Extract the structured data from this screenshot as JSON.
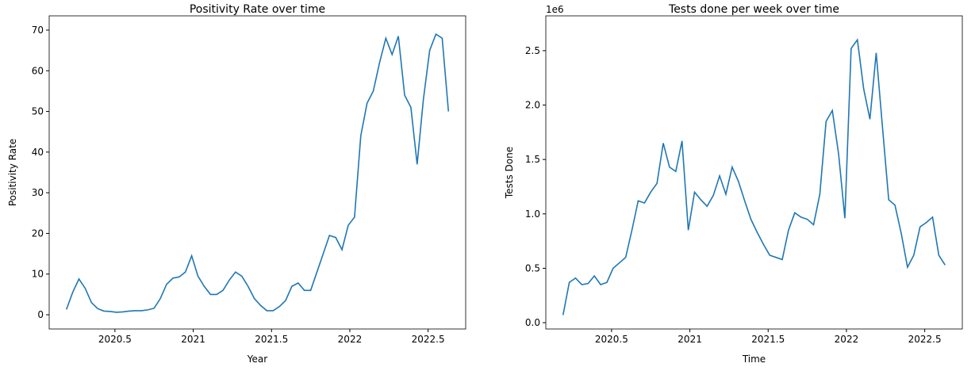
{
  "chart_data": [
    {
      "type": "line",
      "title": "Positivity Rate over time",
      "xlabel": "Year",
      "ylabel": "Positivity Rate",
      "color": "#1f77b4",
      "x": [
        2020.19,
        2020.23,
        2020.27,
        2020.31,
        2020.35,
        2020.39,
        2020.43,
        2020.47,
        2020.51,
        2020.55,
        2020.59,
        2020.63,
        2020.67,
        2020.71,
        2020.75,
        2020.79,
        2020.83,
        2020.87,
        2020.91,
        2020.95,
        2020.99,
        2021.03,
        2021.07,
        2021.11,
        2021.15,
        2021.19,
        2021.23,
        2021.27,
        2021.31,
        2021.35,
        2021.39,
        2021.43,
        2021.47,
        2021.51,
        2021.55,
        2021.59,
        2021.63,
        2021.67,
        2021.71,
        2021.75,
        2021.79,
        2021.83,
        2021.87,
        2021.91,
        2021.95,
        2021.99,
        2022.03,
        2022.07,
        2022.11,
        2022.15,
        2022.19,
        2022.23,
        2022.27,
        2022.31,
        2022.35,
        2022.39,
        2022.43,
        2022.47,
        2022.51,
        2022.55,
        2022.59,
        2022.63
      ],
      "values": [
        1.3,
        5.5,
        8.8,
        6.5,
        3,
        1.5,
        0.9,
        0.8,
        0.6,
        0.7,
        0.9,
        1.0,
        1.0,
        1.2,
        1.6,
        4,
        7.5,
        9,
        9.3,
        10.5,
        14.5,
        9.5,
        7,
        5,
        5,
        6,
        8.5,
        10.5,
        9.5,
        7,
        4,
        2.3,
        1,
        1,
        2,
        3.5,
        7,
        7.8,
        6,
        6,
        10.5,
        15,
        19.5,
        19,
        16,
        22,
        24,
        44,
        52,
        55,
        62,
        68,
        64,
        68.5,
        54,
        51,
        37,
        53,
        65,
        69,
        68,
        50
      ],
      "xlim": [
        2020.08,
        2022.74
      ],
      "xticks": [
        2020.5,
        2021.0,
        2021.5,
        2022.0,
        2022.5
      ],
      "ylim": [
        -3.5,
        73.5
      ],
      "yticks": [
        0,
        10,
        20,
        30,
        40,
        50,
        60,
        70
      ]
    },
    {
      "type": "line",
      "title": "Tests done per week over time",
      "xlabel": "Time",
      "ylabel": "Tests Done",
      "y_offset_label": "1e6",
      "color": "#1f77b4",
      "x": [
        2020.19,
        2020.23,
        2020.27,
        2020.31,
        2020.35,
        2020.39,
        2020.43,
        2020.47,
        2020.51,
        2020.55,
        2020.59,
        2020.63,
        2020.67,
        2020.71,
        2020.75,
        2020.79,
        2020.83,
        2020.87,
        2020.91,
        2020.95,
        2020.99,
        2021.03,
        2021.07,
        2021.11,
        2021.15,
        2021.19,
        2021.23,
        2021.27,
        2021.31,
        2021.35,
        2021.39,
        2021.43,
        2021.47,
        2021.51,
        2021.55,
        2021.59,
        2021.63,
        2021.67,
        2021.71,
        2021.75,
        2021.79,
        2021.83,
        2021.87,
        2021.91,
        2021.95,
        2021.99,
        2022.03,
        2022.07,
        2022.11,
        2022.15,
        2022.19,
        2022.23,
        2022.27,
        2022.31,
        2022.35,
        2022.39,
        2022.43,
        2022.47,
        2022.51,
        2022.55,
        2022.59,
        2022.63
      ],
      "values": [
        70000,
        370000,
        410000,
        350000,
        360000,
        430000,
        350000,
        370000,
        500000,
        550000,
        600000,
        850000,
        1120000,
        1100000,
        1200000,
        1280000,
        1650000,
        1430000,
        1390000,
        1670000,
        850000,
        1200000,
        1130000,
        1070000,
        1170000,
        1350000,
        1180000,
        1430000,
        1300000,
        1120000,
        950000,
        830000,
        720000,
        620000,
        600000,
        580000,
        850000,
        1010000,
        970000,
        950000,
        900000,
        1180000,
        1850000,
        1950000,
        1550000,
        960000,
        2520000,
        2600000,
        2150000,
        1870000,
        2480000,
        1800000,
        1130000,
        1080000,
        820000,
        510000,
        620000,
        880000,
        920000,
        970000,
        620000,
        530000
      ],
      "xlim": [
        2020.08,
        2022.74
      ],
      "xticks": [
        2020.5,
        2021.0,
        2021.5,
        2022.0,
        2022.5
      ],
      "ylim": [
        -58000,
        2820000
      ],
      "yticks": [
        {
          "value": 0,
          "label": "0.0"
        },
        {
          "value": 500000,
          "label": "0.5"
        },
        {
          "value": 1000000,
          "label": "1.0"
        },
        {
          "value": 1500000,
          "label": "1.5"
        },
        {
          "value": 2000000,
          "label": "2.0"
        },
        {
          "value": 2500000,
          "label": "2.5"
        }
      ]
    }
  ]
}
